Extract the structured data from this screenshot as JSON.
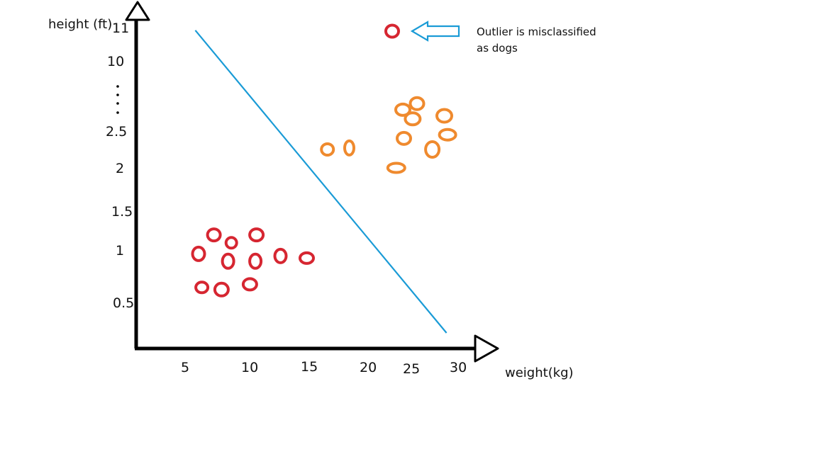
{
  "chart_data": {
    "type": "scatter",
    "title": "",
    "xlabel": "weight(kg)",
    "ylabel": "height (ft)",
    "x_ticks": [
      "5",
      "10",
      "15",
      "20",
      "25",
      "30"
    ],
    "y_ticks": [
      "11",
      "10",
      "2.5",
      "2",
      "1.5",
      "1",
      "0.5"
    ],
    "y_scale": "non-uniform (0.5 to 2.5, then break marked with dots, then 10, 11)",
    "series": [
      {
        "color": "#d62631",
        "points": [
          {
            "x": 7.7,
            "y": 1.2
          },
          {
            "x": 9.3,
            "y": 1.1
          },
          {
            "x": 11.6,
            "y": 1.2
          },
          {
            "x": 6.3,
            "y": 0.97
          },
          {
            "x": 9.0,
            "y": 0.9
          },
          {
            "x": 11.5,
            "y": 0.9
          },
          {
            "x": 13.8,
            "y": 0.95
          },
          {
            "x": 16.2,
            "y": 0.93
          },
          {
            "x": 6.6,
            "y": 0.65
          },
          {
            "x": 8.4,
            "y": 0.63
          },
          {
            "x": 11.0,
            "y": 0.68
          }
        ]
      },
      {
        "color": "#ef8a2e",
        "points": [
          {
            "x": 18.1,
            "y": 2.25
          },
          {
            "x": 20.1,
            "y": 2.27
          },
          {
            "x": 24.4,
            "y": 2.0
          },
          {
            "x": 25.1,
            "y": 2.4
          },
          {
            "x": 25.9,
            "y": 2.7
          },
          {
            "x": 25.0,
            "y": 2.85
          },
          {
            "x": 26.3,
            "y": 2.95
          },
          {
            "x": 28.8,
            "y": 2.75
          },
          {
            "x": 27.7,
            "y": 2.25
          },
          {
            "x": 29.1,
            "y": 2.45
          }
        ]
      }
    ],
    "decision_line": {
      "color": "#1a9bd6",
      "from": {
        "x": 6.0,
        "y": 10.9
      },
      "to": {
        "x": 29.0,
        "y": 0.35
      }
    },
    "annotation": {
      "text_line1": "Outlier is misclassified",
      "text_line2": "as dogs",
      "marker_color": "#d62631",
      "arrow_color": "#1a9bd6"
    },
    "grid": false,
    "legend": "none"
  }
}
